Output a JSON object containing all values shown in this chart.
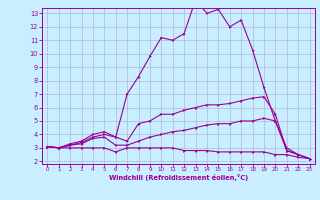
{
  "x": [
    0,
    1,
    2,
    3,
    4,
    5,
    6,
    7,
    8,
    9,
    10,
    11,
    12,
    13,
    14,
    15,
    16,
    17,
    18,
    19,
    20,
    21,
    22,
    23
  ],
  "line1": [
    3.1,
    3.0,
    3.3,
    3.5,
    4.0,
    4.2,
    3.8,
    7.0,
    8.3,
    9.8,
    11.2,
    11.0,
    11.5,
    14.0,
    13.0,
    13.3,
    12.0,
    12.5,
    10.3,
    7.5,
    5.0,
    3.0,
    2.5,
    2.2
  ],
  "line2": [
    3.1,
    3.0,
    3.2,
    3.4,
    3.8,
    4.0,
    3.8,
    3.5,
    4.8,
    5.0,
    5.5,
    5.5,
    5.8,
    6.0,
    6.2,
    6.2,
    6.3,
    6.5,
    6.7,
    6.8,
    5.5,
    2.8,
    2.5,
    2.2
  ],
  "line3": [
    3.1,
    3.0,
    3.2,
    3.3,
    3.7,
    3.8,
    3.2,
    3.2,
    3.5,
    3.8,
    4.0,
    4.2,
    4.3,
    4.5,
    4.7,
    4.8,
    4.8,
    5.0,
    5.0,
    5.2,
    5.0,
    2.8,
    2.5,
    2.2
  ],
  "line4": [
    3.1,
    3.0,
    3.0,
    3.0,
    3.0,
    3.0,
    2.7,
    3.0,
    3.0,
    3.0,
    3.0,
    3.0,
    2.8,
    2.8,
    2.8,
    2.7,
    2.7,
    2.7,
    2.7,
    2.7,
    2.5,
    2.5,
    2.3,
    2.2
  ],
  "color": "#990099",
  "bg_color": "#c8eeff",
  "grid_color": "#aaaacc",
  "xlabel": "Windchill (Refroidissement éolien,°C)",
  "xlim": [
    -0.5,
    23.5
  ],
  "ylim": [
    1.8,
    13.4
  ],
  "yticks": [
    2,
    3,
    4,
    5,
    6,
    7,
    8,
    9,
    10,
    11,
    12,
    13
  ],
  "xticks": [
    0,
    1,
    2,
    3,
    4,
    5,
    6,
    7,
    8,
    9,
    10,
    11,
    12,
    13,
    14,
    15,
    16,
    17,
    18,
    19,
    20,
    21,
    22,
    23
  ]
}
